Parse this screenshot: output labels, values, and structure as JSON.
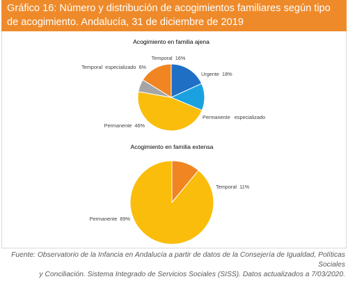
{
  "header": {
    "title": "Gráfico 16: Número y distribución de acogimientos familiares según tipo de acogimiento. Andalucía, 31 de diciembre de 2019"
  },
  "chart_data": [
    {
      "type": "pie",
      "title": "Acogimiento en familia ajena",
      "slices": [
        {
          "label": "Urgente",
          "value": 18,
          "text": "Urgente  18%",
          "color": "#1f6fc5"
        },
        {
          "label": "Permanente especializado",
          "value": 13,
          "text": "Permanente   especializado",
          "color": "#1aa1e0"
        },
        {
          "label": "Permanente",
          "value": 46,
          "text": "Permanente  46%",
          "color": "#fbbd0b"
        },
        {
          "label": "Temporal especializado",
          "value": 6,
          "text": "Temporal  especializado  6%",
          "color": "#a5a5a5"
        },
        {
          "label": "Temporal",
          "value": 16,
          "text": "Temporal  16%",
          "color": "#f08522"
        }
      ]
    },
    {
      "type": "pie",
      "title": "Acogimiento en familia extensa",
      "slices": [
        {
          "label": "Temporal",
          "value": 11,
          "text": "Temporal  11%",
          "color": "#f08522"
        },
        {
          "label": "Permanente",
          "value": 89,
          "text": "Permanente  89%",
          "color": "#fbbd0b"
        }
      ]
    }
  ],
  "footer": {
    "source_line1": "Fuente: Observatorio de la Infancia en Andalucía a partir de datos de la Consejería de Igualdad, Políticas Sociales",
    "source_line2": "y Conciliación. Sistema Integrado de Servicios Sociales (SISS). Datos actualizados a 7/03/2020."
  }
}
